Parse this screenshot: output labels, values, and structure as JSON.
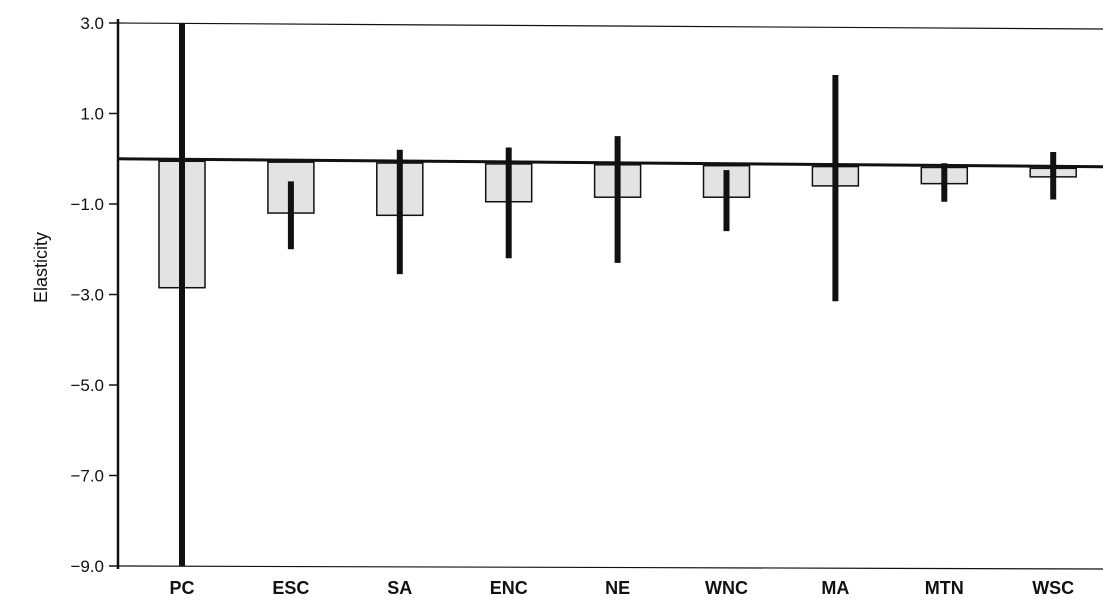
{
  "chart_data": {
    "type": "bar",
    "title": "",
    "xlabel": "",
    "ylabel": "Elasticity",
    "ylim": [
      -9.0,
      3.0
    ],
    "yticks": [
      3.0,
      1.0,
      -1.0,
      -3.0,
      -5.0,
      -7.0,
      -9.0
    ],
    "ytick_labels": [
      "3.0",
      "1.0",
      "−1.0",
      "−3.0",
      "−5.0",
      "−7.0",
      "−9.0"
    ],
    "grid": false,
    "categories": [
      "PC",
      "ESC",
      "SA",
      "ENC",
      "NE",
      "WNC",
      "MA",
      "MTN",
      "WSC"
    ],
    "values": [
      -2.85,
      -1.2,
      -1.25,
      -0.95,
      -0.85,
      -0.85,
      -0.6,
      -0.55,
      -0.4
    ],
    "error_low": [
      -9.0,
      -2.0,
      -2.55,
      -2.2,
      -2.3,
      -1.6,
      -3.15,
      -0.95,
      -0.9
    ],
    "error_high": [
      3.0,
      -0.5,
      0.2,
      0.25,
      0.5,
      -0.25,
      1.85,
      -0.1,
      0.15
    ],
    "bar_color": "#e3e3e3",
    "error_bar_color": "#111111"
  }
}
